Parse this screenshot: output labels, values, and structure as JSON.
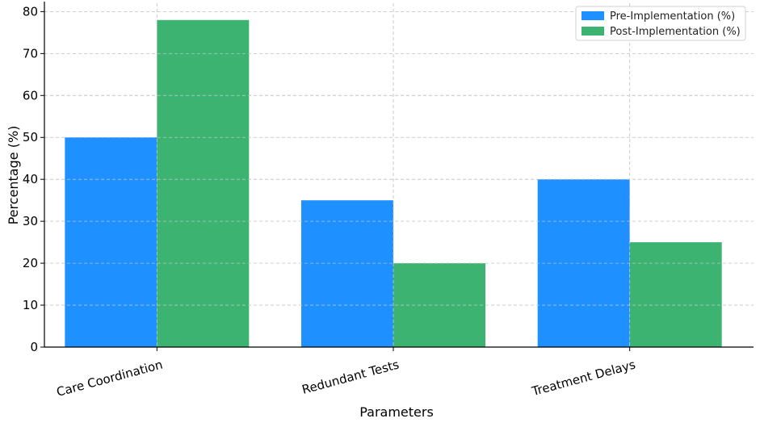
{
  "chart_data": {
    "type": "bar",
    "title": "",
    "xlabel": "Parameters",
    "ylabel": "Percentage (%)",
    "categories": [
      "Care Coordination",
      "Redundant Tests",
      "Treatment Delays"
    ],
    "series": [
      {
        "name": "Pre-Implementation (%)",
        "values": [
          50,
          35,
          40
        ],
        "color": "#1e90ff"
      },
      {
        "name": "Post-Implementation (%)",
        "values": [
          78,
          20,
          25
        ],
        "color": "#3cb371"
      }
    ],
    "ylim": [
      0,
      82
    ],
    "yticks": [
      0,
      10,
      20,
      30,
      40,
      50,
      60,
      70,
      80
    ],
    "grid": true,
    "legend_position": "top-right"
  }
}
